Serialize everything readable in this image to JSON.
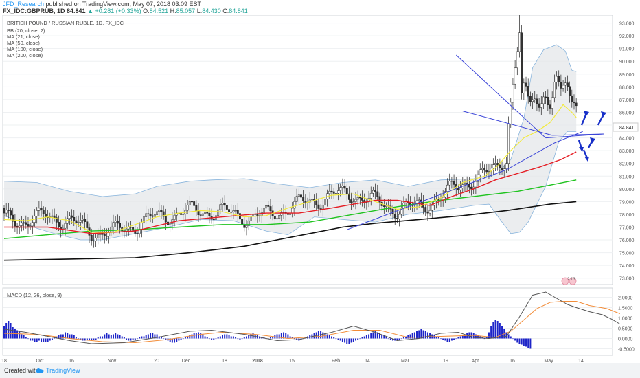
{
  "header": {
    "author": "JFD_Research",
    "published_text": "published on TradingView.com, May 07, 2018 03:09 EST",
    "symbol": "FX_IDC:GBPRUB, 1D",
    "last": "84.841",
    "change": "+0.281 (+0.33%)",
    "open_label": "O:",
    "open": "84.521",
    "high_label": "H:",
    "high": "85.057",
    "low_label": "L:",
    "low": "84.430",
    "close_label": "C:",
    "close": "84.841"
  },
  "footer": {
    "created_with": "Created with",
    "brand": "TradingView"
  },
  "colors": {
    "up_candle": "#ffffff",
    "down_candle": "#333333",
    "ma21": "#f2ea3a",
    "ma50": "#e51c23",
    "ma100": "#1ec31e",
    "ma200": "#111111",
    "bb": "#88b4dc",
    "macd_line": "#555555",
    "signal_line": "#f28c38",
    "histogram": "#1d24c8",
    "trend_lines": "#3a44d8",
    "arrows": "#1830c8"
  },
  "chart_data": [
    {
      "type": "candlestick",
      "title": "BRITISH POUND / RUSSIAN RUBLE, 1D, FX_IDC",
      "indicators": [
        "BB (20, close, 2)",
        "MA (21, close)",
        "MA (50, close)",
        "MA (100, close)",
        "MA (200, close)"
      ],
      "ylim": [
        72.5,
        93.3
      ],
      "y_ticks": [
        "93.000",
        "92.000",
        "91.000",
        "90.000",
        "89.000",
        "88.000",
        "87.000",
        "86.000",
        "85.000",
        "84.000",
        "83.000",
        "82.000",
        "81.000",
        "80.000",
        "79.000",
        "78.000",
        "77.000",
        "76.000",
        "75.000",
        "74.000",
        "73.000"
      ],
      "last_price_label": "84.841",
      "x_tick_labels": [
        "18",
        "Oct",
        "16",
        "Nov",
        "20",
        "Dec",
        "18",
        "2018",
        "15",
        "Feb",
        "14",
        "Mar",
        "19",
        "Apr",
        "16",
        "May",
        "14"
      ],
      "grid": true,
      "annotations": [
        "descending wedge / symmetrical triangle trend lines",
        "rising support line",
        "scenario arrows"
      ],
      "badge": "2 13",
      "series_path_points": {
        "bb_upper": [
          [
            0,
            80.6
          ],
          [
            15,
            80.5
          ],
          [
            30,
            79.8
          ],
          [
            45,
            79.4
          ],
          [
            60,
            79.6
          ],
          [
            70,
            80.2
          ],
          [
            85,
            80.6
          ],
          [
            95,
            80.7
          ],
          [
            110,
            80.8
          ],
          [
            125,
            80.4
          ],
          [
            140,
            80.1
          ],
          [
            155,
            80.5
          ],
          [
            170,
            80.7
          ],
          [
            185,
            80.2
          ],
          [
            200,
            80.7
          ],
          [
            215,
            80.8
          ],
          [
            225,
            81.1
          ],
          [
            232,
            82.3
          ],
          [
            238,
            85.5
          ],
          [
            242,
            89.5
          ],
          [
            247,
            90.9
          ],
          [
            253,
            91.3
          ],
          [
            257,
            90.8
          ],
          [
            260,
            89.3
          ],
          [
            262,
            89.2
          ]
        ],
        "bb_lower": [
          [
            0,
            77.9
          ],
          [
            15,
            76.9
          ],
          [
            25,
            76.4
          ],
          [
            35,
            76.0
          ],
          [
            45,
            76.0
          ],
          [
            60,
            76.5
          ],
          [
            75,
            77.0
          ],
          [
            90,
            77.6
          ],
          [
            105,
            77.5
          ],
          [
            120,
            76.7
          ],
          [
            130,
            76.4
          ],
          [
            142,
            77.8
          ],
          [
            155,
            77.6
          ],
          [
            170,
            77.4
          ],
          [
            185,
            78.0
          ],
          [
            200,
            78.3
          ],
          [
            215,
            78.7
          ],
          [
            222,
            78.8
          ],
          [
            228,
            77.4
          ],
          [
            232,
            76.5
          ],
          [
            236,
            76.6
          ],
          [
            240,
            77.4
          ],
          [
            248,
            80.2
          ],
          [
            254,
            83.7
          ],
          [
            258,
            84.5
          ],
          [
            262,
            84.5
          ]
        ],
        "ma21": [
          [
            0,
            77.6
          ],
          [
            10,
            77.5
          ],
          [
            20,
            77.8
          ],
          [
            30,
            77.5
          ],
          [
            40,
            76.6
          ],
          [
            50,
            76.6
          ],
          [
            60,
            77.2
          ],
          [
            70,
            77.8
          ],
          [
            80,
            78.1
          ],
          [
            90,
            78.3
          ],
          [
            100,
            78.2
          ],
          [
            110,
            77.8
          ],
          [
            120,
            77.9
          ],
          [
            130,
            78.5
          ],
          [
            140,
            79.0
          ],
          [
            150,
            79.5
          ],
          [
            160,
            79.6
          ],
          [
            170,
            79.0
          ],
          [
            180,
            78.4
          ],
          [
            190,
            78.6
          ],
          [
            200,
            79.3
          ],
          [
            210,
            80.5
          ],
          [
            220,
            81.0
          ],
          [
            226,
            81.8
          ],
          [
            232,
            83.0
          ],
          [
            238,
            84.0
          ],
          [
            244,
            84.5
          ],
          [
            250,
            85.2
          ],
          [
            256,
            86.6
          ],
          [
            260,
            86.0
          ],
          [
            262,
            85.6
          ]
        ],
        "ma50": [
          [
            0,
            77.0
          ],
          [
            20,
            77.0
          ],
          [
            40,
            76.5
          ],
          [
            60,
            76.7
          ],
          [
            80,
            77.5
          ],
          [
            100,
            77.8
          ],
          [
            120,
            78.1
          ],
          [
            135,
            78.1
          ],
          [
            150,
            78.5
          ],
          [
            170,
            79.1
          ],
          [
            180,
            79.1
          ],
          [
            195,
            78.7
          ],
          [
            205,
            79.4
          ],
          [
            215,
            80.0
          ],
          [
            225,
            80.7
          ],
          [
            235,
            81.2
          ],
          [
            245,
            81.7
          ],
          [
            255,
            82.3
          ],
          [
            262,
            82.9
          ]
        ],
        "ma100": [
          [
            0,
            76.1
          ],
          [
            20,
            76.4
          ],
          [
            40,
            76.7
          ],
          [
            60,
            76.8
          ],
          [
            80,
            77.0
          ],
          [
            100,
            77.2
          ],
          [
            120,
            77.2
          ],
          [
            140,
            77.4
          ],
          [
            160,
            78.0
          ],
          [
            180,
            78.6
          ],
          [
            200,
            79.1
          ],
          [
            220,
            79.5
          ],
          [
            235,
            79.8
          ],
          [
            250,
            80.3
          ],
          [
            262,
            80.7
          ]
        ],
        "ma200": [
          [
            0,
            74.4
          ],
          [
            30,
            74.5
          ],
          [
            60,
            74.6
          ],
          [
            85,
            75.0
          ],
          [
            110,
            75.5
          ],
          [
            125,
            76.0
          ],
          [
            140,
            76.5
          ],
          [
            155,
            77.0
          ],
          [
            170,
            77.3
          ],
          [
            190,
            77.6
          ],
          [
            210,
            77.9
          ],
          [
            230,
            78.3
          ],
          [
            250,
            78.8
          ],
          [
            262,
            79.0
          ]
        ],
        "rising_support": [
          [
            157,
            76.8
          ],
          [
            230,
            81.5
          ],
          [
            252,
            83.6
          ],
          [
            265,
            84.5
          ]
        ],
        "wedge_upper": [
          [
            207,
            90.5
          ],
          [
            248,
            84.0
          ]
        ],
        "wedge_lower": [
          [
            210,
            86.1
          ],
          [
            251,
            84.2
          ]
        ]
      }
    },
    {
      "type": "line",
      "title": "MACD (12, 26, close, 9)",
      "ylim": [
        -0.75,
        2.35
      ],
      "y_ticks": [
        "2.0000",
        "1.5000",
        "1.0000",
        "0.5000",
        "0.0000",
        "-0.5000"
      ],
      "series": [
        {
          "values": [
            [
              0,
              0.45
            ],
            [
              10,
              0.3
            ],
            [
              20,
              0.1
            ],
            [
              30,
              -0.1
            ],
            [
              40,
              -0.25
            ],
            [
              55,
              -0.2
            ],
            [
              70,
              0.05
            ],
            [
              85,
              0.35
            ],
            [
              95,
              0.4
            ],
            [
              110,
              0.2
            ],
            [
              125,
              -0.1
            ],
            [
              135,
              -0.05
            ],
            [
              150,
              0.3
            ],
            [
              160,
              0.6
            ],
            [
              170,
              0.3
            ],
            [
              180,
              -0.1
            ],
            [
              190,
              0.0
            ],
            [
              200,
              0.25
            ],
            [
              208,
              0.3
            ],
            [
              215,
              0.05
            ],
            [
              222,
              0.0
            ],
            [
              230,
              0.1
            ],
            [
              236,
              1.05
            ],
            [
              242,
              2.1
            ],
            [
              248,
              2.25
            ],
            [
              253,
              1.95
            ],
            [
              258,
              1.65
            ],
            [
              262,
              1.5
            ],
            [
              268,
              1.3
            ],
            [
              274,
              1.15
            ],
            [
              278,
              0.95
            ],
            [
              282,
              0.7
            ]
          ]
        },
        {
          "values": [
            [
              0,
              0.25
            ],
            [
              15,
              0.2
            ],
            [
              30,
              0.0
            ],
            [
              45,
              -0.15
            ],
            [
              60,
              -0.2
            ],
            [
              75,
              -0.05
            ],
            [
              90,
              0.2
            ],
            [
              100,
              0.3
            ],
            [
              115,
              0.2
            ],
            [
              130,
              0.0
            ],
            [
              145,
              0.1
            ],
            [
              160,
              0.4
            ],
            [
              172,
              0.4
            ],
            [
              185,
              0.05
            ],
            [
              200,
              0.1
            ],
            [
              215,
              0.15
            ],
            [
              225,
              0.05
            ],
            [
              232,
              0.35
            ],
            [
              238,
              0.9
            ],
            [
              244,
              1.45
            ],
            [
              250,
              1.75
            ],
            [
              256,
              1.8
            ],
            [
              262,
              1.8
            ],
            [
              268,
              1.6
            ],
            [
              276,
              1.45
            ],
            [
              282,
              1.2
            ]
          ]
        }
      ],
      "histogram": [
        0.6,
        0.75,
        0.85,
        0.75,
        0.55,
        0.45,
        0.4,
        0.35,
        0.2,
        0.15,
        0.05,
        0.0,
        -0.1,
        -0.1,
        -0.15,
        -0.15,
        -0.1,
        -0.15,
        -0.15,
        -0.15,
        -0.15,
        -0.1,
        -0.05,
        0.05,
        0.1,
        0.15,
        0.2,
        0.2,
        0.3,
        0.25,
        0.2,
        0.2,
        0.15,
        0.05,
        0.0,
        -0.05,
        -0.1,
        -0.1,
        -0.1,
        -0.1,
        -0.1,
        -0.05,
        -0.05,
        0.05,
        0.1,
        0.1,
        0.2,
        0.25,
        0.2,
        0.15,
        0.2,
        0.25,
        0.2,
        0.15,
        0.1,
        0.05,
        -0.05,
        -0.1,
        -0.1,
        -0.05,
        -0.05,
        0.0,
        0.05,
        0.1,
        0.1,
        0.15,
        0.2,
        0.25,
        0.25,
        0.2,
        0.2,
        0.1,
        0.05,
        0.0,
        -0.05,
        -0.1,
        -0.15,
        -0.2,
        -0.2,
        -0.15,
        -0.1,
        -0.05,
        0.0,
        0.05,
        0.1,
        0.15,
        0.2,
        0.25,
        0.25,
        0.3,
        0.25,
        0.2,
        0.1,
        0.05,
        0.0,
        -0.05,
        -0.05,
        0.0,
        0.05,
        0.1,
        0.15,
        0.2,
        0.2,
        0.15,
        0.1,
        0.1,
        0.05,
        0.0,
        -0.05,
        0.0,
        0.05,
        0.1,
        0.15,
        0.2,
        0.25,
        0.2,
        0.15,
        0.1,
        0.05,
        0.05,
        0.0,
        0.0,
        0.05,
        0.1,
        0.15,
        0.2,
        0.2,
        0.25,
        0.3,
        0.25,
        0.2,
        0.1,
        0.05,
        0.0,
        -0.05,
        -0.1,
        -0.05,
        0.0,
        0.05,
        0.1,
        0.15,
        0.2,
        0.25,
        0.3,
        0.35,
        0.35,
        0.3,
        0.25,
        0.2,
        0.15,
        0.1,
        0.05,
        0.0,
        -0.05,
        -0.1,
        -0.15,
        -0.2,
        -0.25,
        -0.25,
        -0.2,
        -0.15,
        -0.1,
        -0.05,
        0.0,
        0.05,
        0.1,
        0.15,
        0.2,
        0.25,
        0.3,
        0.35,
        0.3,
        0.25,
        0.2,
        0.15,
        0.05,
        0.0,
        -0.05,
        -0.1,
        -0.1,
        -0.1,
        -0.05,
        0.0,
        0.05,
        0.1,
        0.15,
        0.2,
        0.25,
        0.3,
        0.35,
        0.4,
        0.45,
        0.4,
        0.35,
        0.3,
        0.25,
        0.2,
        0.15,
        0.1,
        0.05,
        0.0,
        -0.05,
        -0.1,
        -0.15,
        -0.15,
        -0.1,
        -0.05,
        0.0,
        0.05,
        0.1,
        0.15,
        0.2,
        0.25,
        0.3,
        0.3,
        0.25,
        0.2,
        0.15,
        0.1,
        0.05,
        0.0,
        0.1,
        0.3,
        0.6,
        0.8,
        0.9,
        0.85,
        0.75,
        0.6,
        0.45,
        0.3,
        0.2,
        0.1,
        0.0,
        -0.1,
        -0.2,
        -0.25,
        -0.3,
        -0.35,
        -0.4,
        -0.45,
        -0.5
      ]
    }
  ]
}
